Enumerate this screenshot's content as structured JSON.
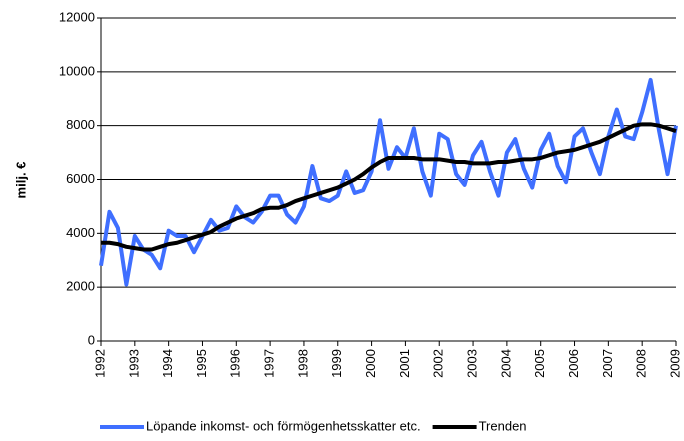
{
  "chart_data": {
    "type": "line",
    "y_label": "milj. €",
    "x": [
      1992,
      1992.25,
      1992.5,
      1992.75,
      1993,
      1993.25,
      1993.5,
      1993.75,
      1994,
      1994.25,
      1994.5,
      1994.75,
      1995,
      1995.25,
      1995.5,
      1995.75,
      1996,
      1996.25,
      1996.5,
      1996.75,
      1997,
      1997.25,
      1997.5,
      1997.75,
      1998,
      1998.25,
      1998.5,
      1998.75,
      1999,
      1999.25,
      1999.5,
      1999.75,
      2000,
      2000.25,
      2000.5,
      2000.75,
      2001,
      2001.25,
      2001.5,
      2001.75,
      2002,
      2002.25,
      2002.5,
      2002.75,
      2003,
      2003.25,
      2003.5,
      2003.75,
      2004,
      2004.25,
      2004.5,
      2004.75,
      2005,
      2005.25,
      2005.5,
      2005.75,
      2006,
      2006.25,
      2006.5,
      2006.75,
      2007,
      2007.25,
      2007.5,
      2007.75,
      2008,
      2008.25,
      2008.5,
      2008.75,
      2009
    ],
    "series": [
      {
        "name": "Löpande inkomst- och förmögenhetsskatter etc.",
        "color": "#3f6fff",
        "values": [
          2800,
          4800,
          4200,
          2100,
          3900,
          3400,
          3200,
          2700,
          4100,
          3900,
          3900,
          3300,
          3900,
          4500,
          4100,
          4200,
          5000,
          4600,
          4400,
          4800,
          5400,
          5400,
          4700,
          4400,
          5000,
          6500,
          5300,
          5200,
          5400,
          6300,
          5500,
          5600,
          6300,
          8200,
          6400,
          7200,
          6800,
          7900,
          6300,
          5400,
          7700,
          7500,
          6200,
          5800,
          6900,
          7400,
          6300,
          5400,
          7000,
          7500,
          6400,
          5700,
          7100,
          7700,
          6500,
          5900,
          7600,
          7900,
          7000,
          6200,
          7600,
          8600,
          7600,
          7500,
          8500,
          9700,
          7800,
          6200,
          8000
        ]
      },
      {
        "name": "Trenden",
        "color": "#000000",
        "values": [
          3650,
          3650,
          3600,
          3500,
          3450,
          3400,
          3400,
          3500,
          3600,
          3650,
          3750,
          3850,
          3950,
          4050,
          4250,
          4400,
          4550,
          4650,
          4750,
          4900,
          4950,
          4950,
          5050,
          5200,
          5300,
          5400,
          5500,
          5600,
          5700,
          5850,
          6000,
          6200,
          6450,
          6650,
          6800,
          6800,
          6800,
          6800,
          6750,
          6750,
          6750,
          6700,
          6650,
          6650,
          6600,
          6600,
          6600,
          6650,
          6650,
          6700,
          6750,
          6750,
          6800,
          6900,
          7000,
          7050,
          7100,
          7200,
          7300,
          7400,
          7550,
          7700,
          7850,
          8000,
          8050,
          8050,
          8000,
          7900,
          7800
        ]
      }
    ],
    "xlim": [
      1992,
      2009
    ],
    "xticks": [
      1992,
      1993,
      1994,
      1995,
      1996,
      1997,
      1998,
      1999,
      2000,
      2001,
      2002,
      2003,
      2004,
      2005,
      2006,
      2007,
      2008,
      2009
    ],
    "ylim": [
      0,
      12000
    ],
    "yticks": [
      0,
      2000,
      4000,
      6000,
      8000,
      10000,
      12000
    ],
    "grid": true,
    "legend": "bottom"
  }
}
